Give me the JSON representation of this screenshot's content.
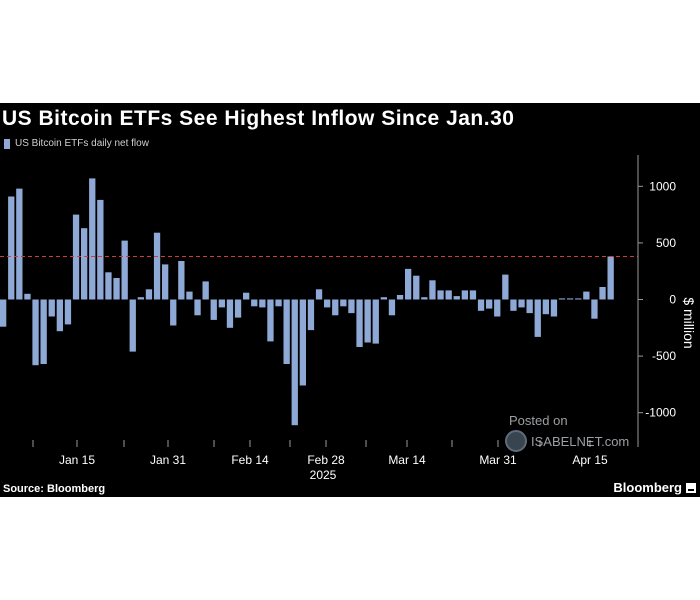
{
  "title": "US Bitcoin ETFs See Highest Inflow Since Jan.30",
  "legend": {
    "label": "US Bitcoin ETFs daily net flow",
    "color": "#8ea9d6"
  },
  "source": "Source: Bloomberg",
  "brand": "Bloomberg",
  "watermark": {
    "line1": "Posted on",
    "line2": "ISABELNET.com"
  },
  "chart_data": {
    "type": "bar",
    "title": "US Bitcoin ETFs See Highest Inflow Since Jan.30",
    "series": [
      {
        "name": "US Bitcoin ETFs daily net flow",
        "color": "#8ea9d6",
        "values": [
          -240,
          910,
          980,
          50,
          -580,
          -570,
          -150,
          -280,
          -220,
          750,
          630,
          1070,
          880,
          240,
          190,
          520,
          -460,
          20,
          90,
          590,
          310,
          -230,
          340,
          70,
          -140,
          160,
          -180,
          -70,
          -250,
          -160,
          60,
          -60,
          -70,
          -370,
          -60,
          -570,
          -1110,
          -760,
          -270,
          90,
          -70,
          -140,
          -60,
          -120,
          -420,
          -380,
          -390,
          20,
          -140,
          40,
          270,
          210,
          20,
          170,
          80,
          80,
          30,
          80,
          80,
          -100,
          -80,
          -150,
          220,
          -100,
          -70,
          -120,
          -330,
          -130,
          -150,
          10,
          10,
          10,
          70,
          -170,
          110,
          380
        ]
      }
    ],
    "x_tick_labels": [
      "Jan 15",
      "Jan 31",
      "Feb 14",
      "Feb 28",
      "Mar 14",
      "Mar 31",
      "Apr 15"
    ],
    "x_year_label": "2025",
    "ylabel": "$ million",
    "yticks": [
      1000,
      500,
      0,
      -500,
      -1000
    ],
    "ylim": [
      -1300,
      1300
    ],
    "reference_line": {
      "value": 380,
      "style": "dashed",
      "color": "#d23b3b"
    },
    "grid": false,
    "legend_position": "top-left"
  }
}
